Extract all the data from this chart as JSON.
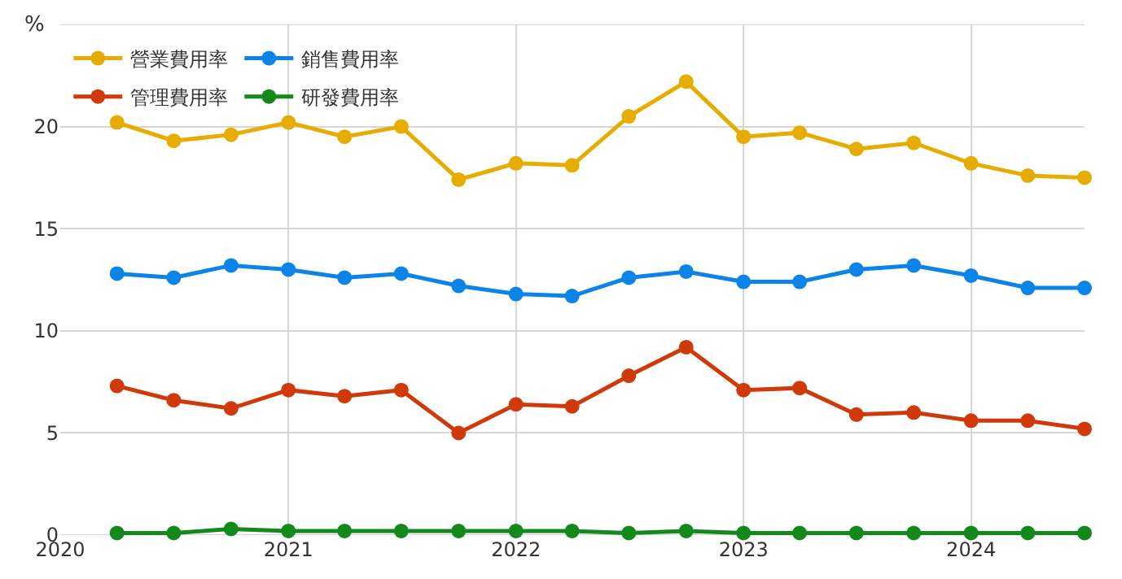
{
  "chart_data": {
    "type": "line",
    "ylabel": "%",
    "x": [
      "2020-04-01",
      "2020-07-01",
      "2020-10-01",
      "2021-01-01",
      "2021-04-01",
      "2021-07-01",
      "2021-10-01",
      "2022-01-01",
      "2022-04-01",
      "2022-07-01",
      "2022-10-01",
      "2023-01-01",
      "2023-04-01",
      "2023-07-01",
      "2023-10-01",
      "2024-01-01",
      "2024-04-01",
      "2024-07-01"
    ],
    "series": [
      {
        "name": "營業費用率",
        "color": "#e6ac00",
        "values": [
          20.2,
          19.3,
          19.6,
          20.2,
          19.5,
          20.0,
          17.4,
          18.2,
          18.1,
          20.5,
          22.2,
          19.5,
          19.7,
          18.9,
          19.2,
          18.2,
          17.6,
          17.5
        ]
      },
      {
        "name": "銷售費用率",
        "color": "#0a84e8",
        "values": [
          12.8,
          12.6,
          13.2,
          13.0,
          12.6,
          12.8,
          12.2,
          11.8,
          11.7,
          12.6,
          12.9,
          12.4,
          12.4,
          13.0,
          13.2,
          12.7,
          12.1,
          12.1
        ]
      },
      {
        "name": "管理費用率",
        "color": "#d03a0a",
        "values": [
          7.3,
          6.6,
          6.2,
          7.1,
          6.8,
          7.1,
          5.0,
          6.4,
          6.3,
          7.8,
          9.2,
          7.1,
          7.2,
          5.9,
          6.0,
          5.6,
          5.6,
          5.2
        ]
      },
      {
        "name": "研發費用率",
        "color": "#13891c",
        "values": [
          0.1,
          0.1,
          0.3,
          0.2,
          0.2,
          0.2,
          0.2,
          0.2,
          0.2,
          0.1,
          0.2,
          0.1,
          0.1,
          0.1,
          0.1,
          0.1,
          0.1,
          0.1
        ]
      }
    ],
    "xlim": [
      "2020-01-01",
      "2024-07-01"
    ],
    "xticks": [
      {
        "value": "2020-01-01",
        "label": "2020"
      },
      {
        "value": "2021-01-01",
        "label": "2021"
      },
      {
        "value": "2022-01-01",
        "label": "2022"
      },
      {
        "value": "2023-01-01",
        "label": "2023"
      },
      {
        "value": "2024-01-01",
        "label": "2024"
      }
    ],
    "ylim": [
      0,
      25
    ],
    "yticks": [
      0,
      5,
      10,
      15,
      20,
      {
        "value": 25,
        "label": null
      }
    ],
    "grid": true,
    "legend": "top left",
    "marker": "circle",
    "line_style": "solid"
  }
}
